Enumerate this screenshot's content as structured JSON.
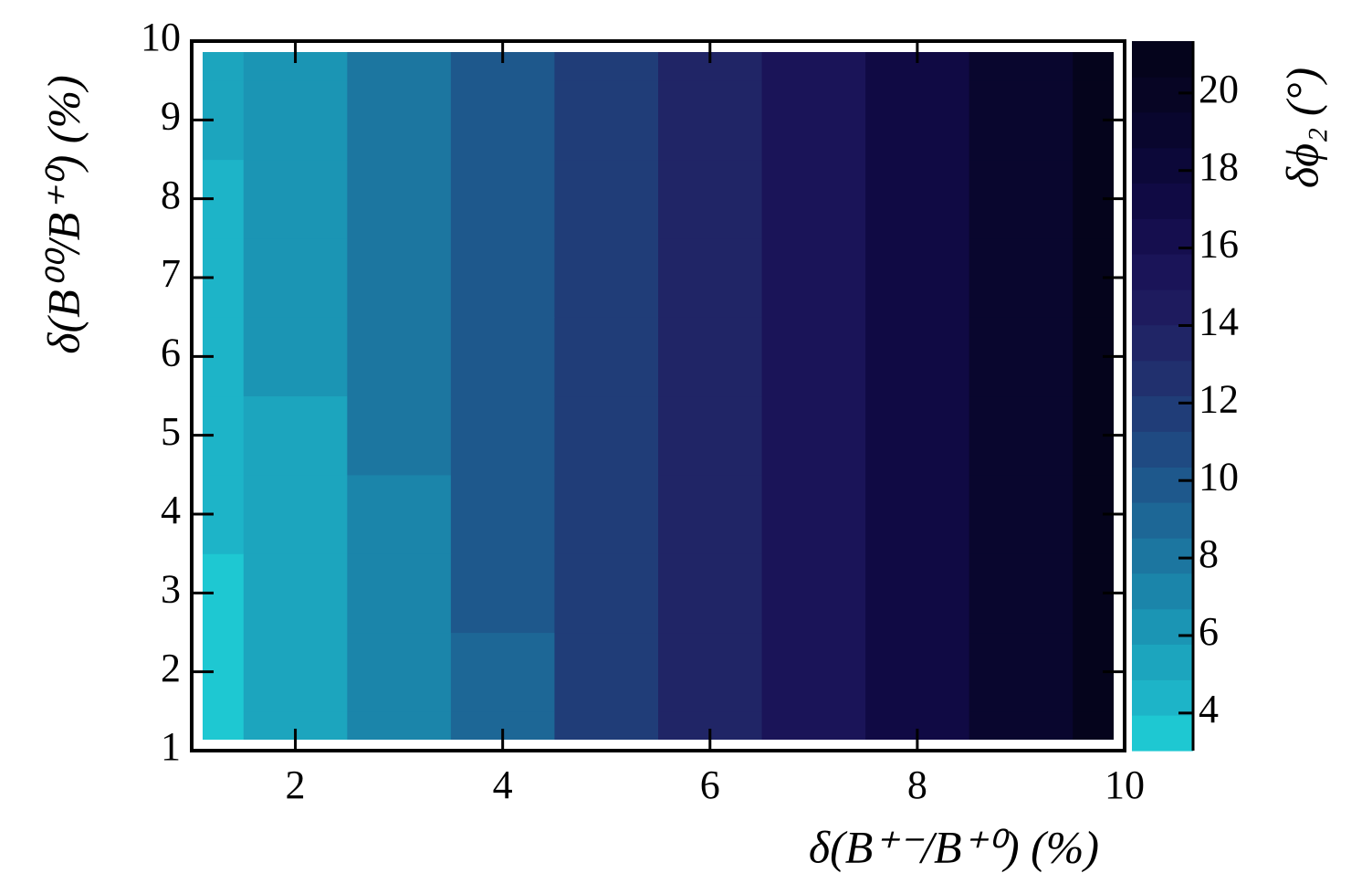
{
  "chart_data": {
    "type": "contour",
    "xlabel": "δ(B⁺⁻/B⁺⁰) (%)",
    "ylabel": "δ(B⁰⁰/B⁺⁰) (%)",
    "zlabel": "δϕ₂ (°)",
    "x": [
      1,
      2,
      3,
      4,
      5,
      6,
      7,
      8,
      9,
      10
    ],
    "y": [
      1,
      2,
      3,
      4,
      5,
      6,
      7,
      8,
      9,
      10
    ],
    "z": [
      [
        3.5,
        5.3,
        7.4,
        9.4,
        11.4,
        13.3,
        15.2,
        17.0,
        18.8,
        20.6
      ],
      [
        3.7,
        5.4,
        7.5,
        9.4,
        11.4,
        13.3,
        15.2,
        17.0,
        18.8,
        20.6
      ],
      [
        3.9,
        5.5,
        7.5,
        9.5,
        11.4,
        13.3,
        15.2,
        17.0,
        18.8,
        20.6
      ],
      [
        4.0,
        5.6,
        7.6,
        9.5,
        11.5,
        13.3,
        15.2,
        17.0,
        18.8,
        20.6
      ],
      [
        4.2,
        5.7,
        7.7,
        9.6,
        11.5,
        13.3,
        15.2,
        17.0,
        18.8,
        20.6
      ],
      [
        4.4,
        5.9,
        7.7,
        9.6,
        11.5,
        13.4,
        15.2,
        17.0,
        18.8,
        20.6
      ],
      [
        4.6,
        6.0,
        7.8,
        9.7,
        11.5,
        13.4,
        15.2,
        17.0,
        18.8,
        20.6
      ],
      [
        4.7,
        6.1,
        7.9,
        9.7,
        11.6,
        13.4,
        15.2,
        17.0,
        18.8,
        20.6
      ],
      [
        4.9,
        6.2,
        7.9,
        9.8,
        11.6,
        13.4,
        15.2,
        17.0,
        18.8,
        20.6
      ],
      [
        5.1,
        6.3,
        8.0,
        9.8,
        11.6,
        13.4,
        15.2,
        17.0,
        18.8,
        20.6
      ]
    ],
    "levels": [
      3.03,
      3.95,
      4.86,
      5.78,
      6.69,
      7.61,
      8.52,
      9.44,
      10.35,
      11.27,
      12.19,
      13.1,
      14.02,
      14.93,
      15.85,
      16.76,
      17.68,
      18.59,
      19.51,
      20.42,
      21.34
    ],
    "colors": [
      "#1ec8d2",
      "#1db4c8",
      "#1ca5be",
      "#1b95b4",
      "#1b85aa",
      "#1c76a0",
      "#1d6796",
      "#1e588c",
      "#1f4a82",
      "#203d78",
      "#21306e",
      "#202566",
      "#1e1b5e",
      "#1a1458",
      "#150e4e",
      "#100a44",
      "#0c0839",
      "#09062e",
      "#070524",
      "#05041c"
    ],
    "xlim": [
      1,
      10
    ],
    "ylim": [
      1,
      10
    ],
    "zlim": [
      3.03,
      21.34
    ],
    "xticks": [
      2,
      4,
      6,
      8,
      10
    ],
    "yticks": [
      1,
      2,
      3,
      4,
      5,
      6,
      7,
      8,
      9,
      10
    ],
    "zticks": [
      4,
      6,
      8,
      10,
      12,
      14,
      16,
      18,
      20
    ]
  }
}
